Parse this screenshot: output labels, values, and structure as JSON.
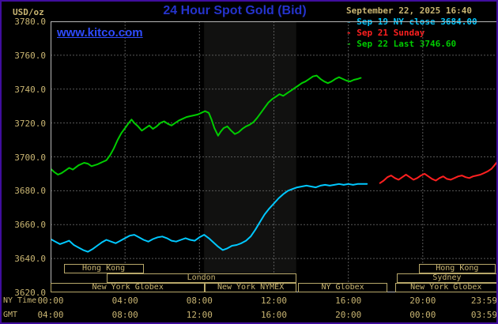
{
  "meta": {
    "datetime": "September 22, 2025 16:40",
    "watermark": "www.kitco.com",
    "ny_time_label": "NY Time",
    "gmt_label": "GMT"
  },
  "colors": {
    "background": "#000000",
    "frame_border": "#400d9e",
    "title_blue": "#2533cc",
    "watermark_blue": "#2e4bff",
    "tan_text": "#c9b572",
    "grid_gray": "#585858",
    "cyan_series": "#00c8ff",
    "red_series": "#ff2020",
    "green_series": "#00cc00"
  },
  "chart_data": {
    "type": "line",
    "title": "24 Hour Spot Gold (Bid)",
    "ylabel": "USD/oz",
    "ylim": [
      3620,
      3780
    ],
    "ytick_step": 20,
    "ytick_labels": [
      "3620.0",
      "3640.0",
      "3660.0",
      "3680.0",
      "3700.0",
      "3720.0",
      "3740.0",
      "3760.0",
      "3780.0"
    ],
    "x_hours_range": [
      0,
      24
    ],
    "x_ticks_ny": [
      "00:00",
      "04:00",
      "08:00",
      "12:00",
      "16:00",
      "20:00",
      "23:59"
    ],
    "x_ticks_gmt": [
      "04:00",
      "08:00",
      "12:00",
      "16:00",
      "20:00",
      "00:00",
      "03:59"
    ],
    "grid": true,
    "legend_position": "top-right",
    "legend": [
      {
        "label": "Sep 19 NY close 3684.00",
        "color": "#00c8ff"
      },
      {
        "label": "Sep 21 Sunday",
        "color": "#ff2020"
      },
      {
        "label": "Sep 22 Last 3746.60",
        "color": "#00cc00"
      }
    ],
    "band": {
      "start_hour": 8.25,
      "end_hour": 13.2
    },
    "series": [
      {
        "name": "Sep 19 NY close",
        "color": "#00c8ff",
        "points": [
          [
            0,
            3651.5
          ],
          [
            0.25,
            3650
          ],
          [
            0.5,
            3648.5
          ],
          [
            0.75,
            3649.5
          ],
          [
            1,
            3650.5
          ],
          [
            1.25,
            3648
          ],
          [
            1.5,
            3646.5
          ],
          [
            1.75,
            3645
          ],
          [
            2,
            3644
          ],
          [
            2.25,
            3645.5
          ],
          [
            2.5,
            3647.5
          ],
          [
            2.75,
            3649.5
          ],
          [
            3,
            3651
          ],
          [
            3.25,
            3650
          ],
          [
            3.5,
            3649
          ],
          [
            3.75,
            3650.5
          ],
          [
            4,
            3652
          ],
          [
            4.25,
            3653.5
          ],
          [
            4.5,
            3654
          ],
          [
            4.75,
            3652.5
          ],
          [
            5,
            3651
          ],
          [
            5.25,
            3650
          ],
          [
            5.5,
            3651.5
          ],
          [
            5.75,
            3652.5
          ],
          [
            6,
            3653
          ],
          [
            6.25,
            3652
          ],
          [
            6.5,
            3650.5
          ],
          [
            6.75,
            3650
          ],
          [
            7,
            3651
          ],
          [
            7.25,
            3652
          ],
          [
            7.5,
            3651
          ],
          [
            7.75,
            3650.5
          ],
          [
            8,
            3652.5
          ],
          [
            8.25,
            3654
          ],
          [
            8.5,
            3652
          ],
          [
            8.75,
            3649.5
          ],
          [
            9,
            3647
          ],
          [
            9.25,
            3645
          ],
          [
            9.5,
            3646
          ],
          [
            9.75,
            3647.5
          ],
          [
            10,
            3648
          ],
          [
            10.25,
            3649
          ],
          [
            10.5,
            3650.5
          ],
          [
            10.75,
            3653
          ],
          [
            11,
            3657
          ],
          [
            11.25,
            3661.5
          ],
          [
            11.5,
            3666
          ],
          [
            11.75,
            3669.5
          ],
          [
            12,
            3672.5
          ],
          [
            12.25,
            3675.5
          ],
          [
            12.5,
            3678
          ],
          [
            12.75,
            3680
          ],
          [
            13,
            3681
          ],
          [
            13.25,
            3682
          ],
          [
            13.5,
            3682.5
          ],
          [
            13.75,
            3683
          ],
          [
            14,
            3682.5
          ],
          [
            14.25,
            3682
          ],
          [
            14.5,
            3683
          ],
          [
            14.75,
            3683.5
          ],
          [
            15,
            3683
          ],
          [
            15.25,
            3683.5
          ],
          [
            15.5,
            3684
          ],
          [
            15.75,
            3683.5
          ],
          [
            16,
            3684
          ],
          [
            16.25,
            3683.5
          ],
          [
            16.5,
            3684
          ],
          [
            16.75,
            3684
          ],
          [
            17,
            3684
          ]
        ]
      },
      {
        "name": "Sep 21 Sunday",
        "color": "#ff2020",
        "points": [
          [
            17.7,
            3684.5
          ],
          [
            17.9,
            3686
          ],
          [
            18.1,
            3688
          ],
          [
            18.3,
            3689
          ],
          [
            18.5,
            3687.5
          ],
          [
            18.7,
            3686.5
          ],
          [
            18.9,
            3688
          ],
          [
            19.1,
            3689.5
          ],
          [
            19.3,
            3688
          ],
          [
            19.5,
            3686.5
          ],
          [
            19.7,
            3687.5
          ],
          [
            19.9,
            3689
          ],
          [
            20.1,
            3690
          ],
          [
            20.3,
            3688.5
          ],
          [
            20.5,
            3687
          ],
          [
            20.7,
            3686
          ],
          [
            20.9,
            3687.5
          ],
          [
            21.1,
            3688.5
          ],
          [
            21.3,
            3687
          ],
          [
            21.5,
            3686.5
          ],
          [
            21.7,
            3687.5
          ],
          [
            21.9,
            3688.5
          ],
          [
            22.1,
            3689
          ],
          [
            22.3,
            3688
          ],
          [
            22.5,
            3687.5
          ],
          [
            22.7,
            3688.5
          ],
          [
            22.9,
            3689
          ],
          [
            23.1,
            3689.5
          ],
          [
            23.3,
            3690.5
          ],
          [
            23.5,
            3691.5
          ],
          [
            23.7,
            3693
          ],
          [
            23.85,
            3695
          ],
          [
            24,
            3697
          ]
        ]
      },
      {
        "name": "Sep 22 Last",
        "color": "#00cc00",
        "points": [
          [
            0,
            3693
          ],
          [
            0.2,
            3691
          ],
          [
            0.4,
            3689.5
          ],
          [
            0.6,
            3690.5
          ],
          [
            0.8,
            3692
          ],
          [
            1,
            3693.5
          ],
          [
            1.2,
            3692.5
          ],
          [
            1.5,
            3695
          ],
          [
            1.8,
            3696.5
          ],
          [
            2,
            3696
          ],
          [
            2.2,
            3694.5
          ],
          [
            2.5,
            3695.5
          ],
          [
            2.8,
            3697
          ],
          [
            3,
            3698
          ],
          [
            3.2,
            3701
          ],
          [
            3.4,
            3705
          ],
          [
            3.6,
            3710
          ],
          [
            3.8,
            3714
          ],
          [
            4,
            3717
          ],
          [
            4.2,
            3720
          ],
          [
            4.35,
            3722
          ],
          [
            4.5,
            3720
          ],
          [
            4.7,
            3718
          ],
          [
            4.9,
            3715.5
          ],
          [
            5.1,
            3717
          ],
          [
            5.3,
            3718.5
          ],
          [
            5.5,
            3716.5
          ],
          [
            5.7,
            3718
          ],
          [
            5.9,
            3720
          ],
          [
            6.1,
            3721
          ],
          [
            6.3,
            3719.5
          ],
          [
            6.5,
            3718.5
          ],
          [
            6.7,
            3720
          ],
          [
            6.9,
            3721.5
          ],
          [
            7.1,
            3722.5
          ],
          [
            7.3,
            3723.5
          ],
          [
            7.5,
            3724
          ],
          [
            7.7,
            3724.5
          ],
          [
            7.9,
            3725
          ],
          [
            8.1,
            3726
          ],
          [
            8.3,
            3727
          ],
          [
            8.5,
            3726
          ],
          [
            8.65,
            3722
          ],
          [
            8.8,
            3717
          ],
          [
            9,
            3712.5
          ],
          [
            9.15,
            3715
          ],
          [
            9.3,
            3717
          ],
          [
            9.5,
            3718
          ],
          [
            9.7,
            3715.5
          ],
          [
            9.9,
            3713.5
          ],
          [
            10.1,
            3714.5
          ],
          [
            10.3,
            3716.5
          ],
          [
            10.5,
            3718
          ],
          [
            10.7,
            3719
          ],
          [
            10.9,
            3720.5
          ],
          [
            11.1,
            3723
          ],
          [
            11.3,
            3726
          ],
          [
            11.5,
            3729
          ],
          [
            11.7,
            3732
          ],
          [
            11.9,
            3734
          ],
          [
            12.1,
            3735.5
          ],
          [
            12.3,
            3737
          ],
          [
            12.5,
            3736
          ],
          [
            12.7,
            3737.5
          ],
          [
            12.9,
            3739
          ],
          [
            13.1,
            3740.5
          ],
          [
            13.3,
            3742
          ],
          [
            13.5,
            3743.5
          ],
          [
            13.7,
            3744.5
          ],
          [
            13.9,
            3746
          ],
          [
            14.1,
            3747.5
          ],
          [
            14.3,
            3748
          ],
          [
            14.5,
            3746
          ],
          [
            14.7,
            3744.5
          ],
          [
            14.9,
            3743.5
          ],
          [
            15.1,
            3744.5
          ],
          [
            15.3,
            3746
          ],
          [
            15.5,
            3747
          ],
          [
            15.7,
            3746
          ],
          [
            15.9,
            3745
          ],
          [
            16.1,
            3744.5
          ],
          [
            16.3,
            3745.5
          ],
          [
            16.5,
            3746
          ],
          [
            16.67,
            3746.6
          ]
        ]
      }
    ],
    "sessions": [
      {
        "row": 0,
        "start": 0.7,
        "end": 5.0,
        "label": "Hong Kong"
      },
      {
        "row": 0,
        "start": 19.8,
        "end": 23.9,
        "label": "Hong Kong"
      },
      {
        "row": 1,
        "start": 3.0,
        "end": 13.2,
        "label": "London"
      },
      {
        "row": 1,
        "start": 18.6,
        "end": 24,
        "label": "Sydney"
      },
      {
        "row": 2,
        "start": 0,
        "end": 8.3,
        "label": "New York Globex"
      },
      {
        "row": 2,
        "start": 8.3,
        "end": 13.2,
        "label": "New York NYMEX"
      },
      {
        "row": 2,
        "start": 13.3,
        "end": 18.1,
        "label": "NY Globex"
      },
      {
        "row": 2,
        "start": 18.5,
        "end": 24,
        "label": "New York Globex"
      }
    ]
  }
}
